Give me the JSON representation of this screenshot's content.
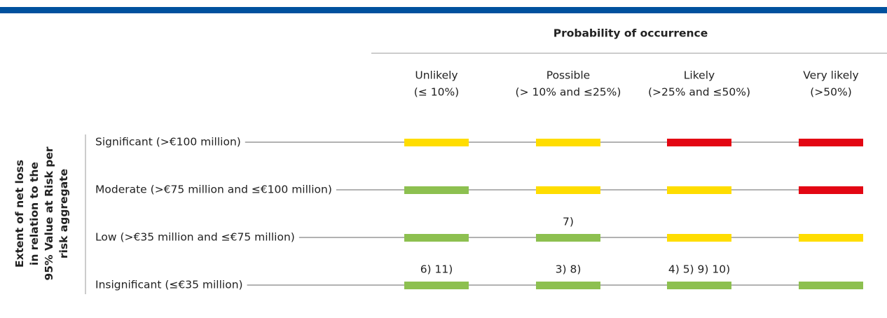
{
  "header": {
    "title": "Probability of occurrence"
  },
  "columns": [
    {
      "label": "Unlikely",
      "range": "(≤ 10%)"
    },
    {
      "label": "Possible",
      "range": "(> 10% and ≤25%)"
    },
    {
      "label": "Likely",
      "range": "(>25% and ≤50%)"
    },
    {
      "label": "Very likely",
      "range": "(>50%)"
    }
  ],
  "axis_label": [
    "Extent of net loss",
    "in relation to the",
    "95% Value at Risk per",
    "risk aggregate"
  ],
  "rows": [
    {
      "label": "Significant (>€100 million)",
      "cells": [
        {
          "color": "#ffdd00"
        },
        {
          "color": "#ffdd00"
        },
        {
          "color": "#e30613"
        },
        {
          "color": "#e30613"
        }
      ]
    },
    {
      "label": "Moderate (>€75 million and ≤€100 million)",
      "cells": [
        {
          "color": "#8dc050"
        },
        {
          "color": "#ffdd00"
        },
        {
          "color": "#ffdd00"
        },
        {
          "color": "#e30613"
        }
      ]
    },
    {
      "label": "Low (>€35 million and ≤€75 million)",
      "cells": [
        {
          "color": "#8dc050"
        },
        {
          "color": "#8dc050",
          "note": "7)"
        },
        {
          "color": "#ffdd00"
        },
        {
          "color": "#ffdd00"
        }
      ]
    },
    {
      "label": "Insignificant (≤€35 million)",
      "cells": [
        {
          "color": "#8dc050",
          "note": "6) 11)"
        },
        {
          "color": "#8dc050",
          "note": "3) 8)"
        },
        {
          "color": "#8dc050",
          "note": "4) 5) 9) 10)"
        },
        {
          "color": "#8dc050"
        }
      ]
    }
  ]
}
